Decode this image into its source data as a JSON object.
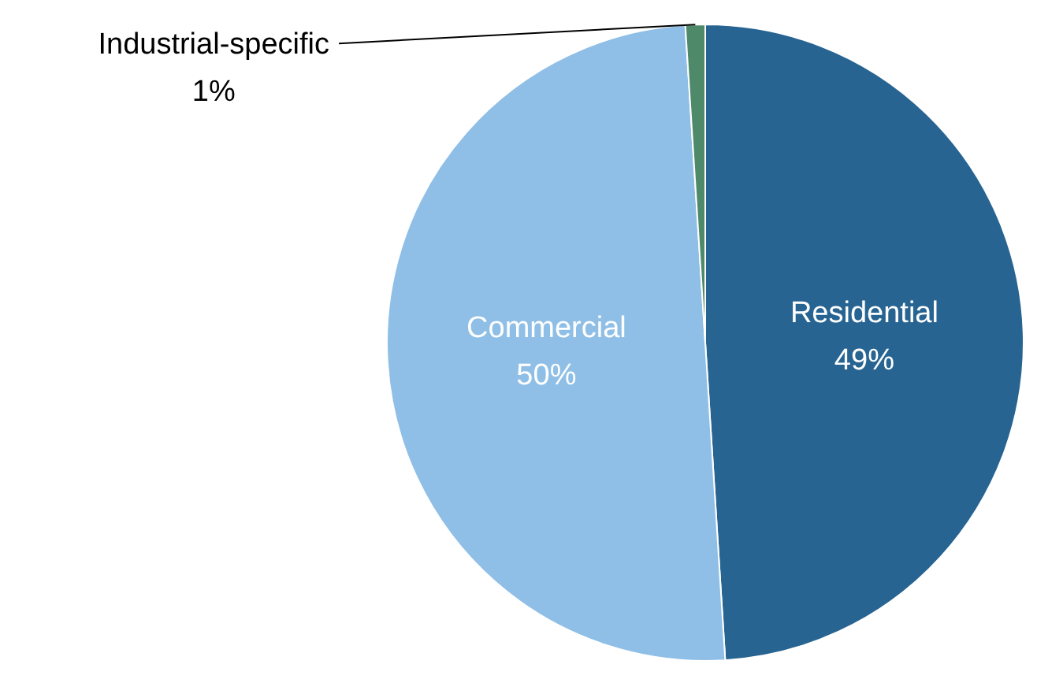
{
  "chart_data": {
    "type": "pie",
    "categories": [
      "Residential",
      "Commercial",
      "Industrial-specific"
    ],
    "values": [
      49,
      50,
      1
    ],
    "colors": [
      "#276492",
      "#8fbfe6",
      "#4e8a6a"
    ],
    "value_labels": [
      "49%",
      "50%",
      "1%"
    ],
    "legend": false
  }
}
